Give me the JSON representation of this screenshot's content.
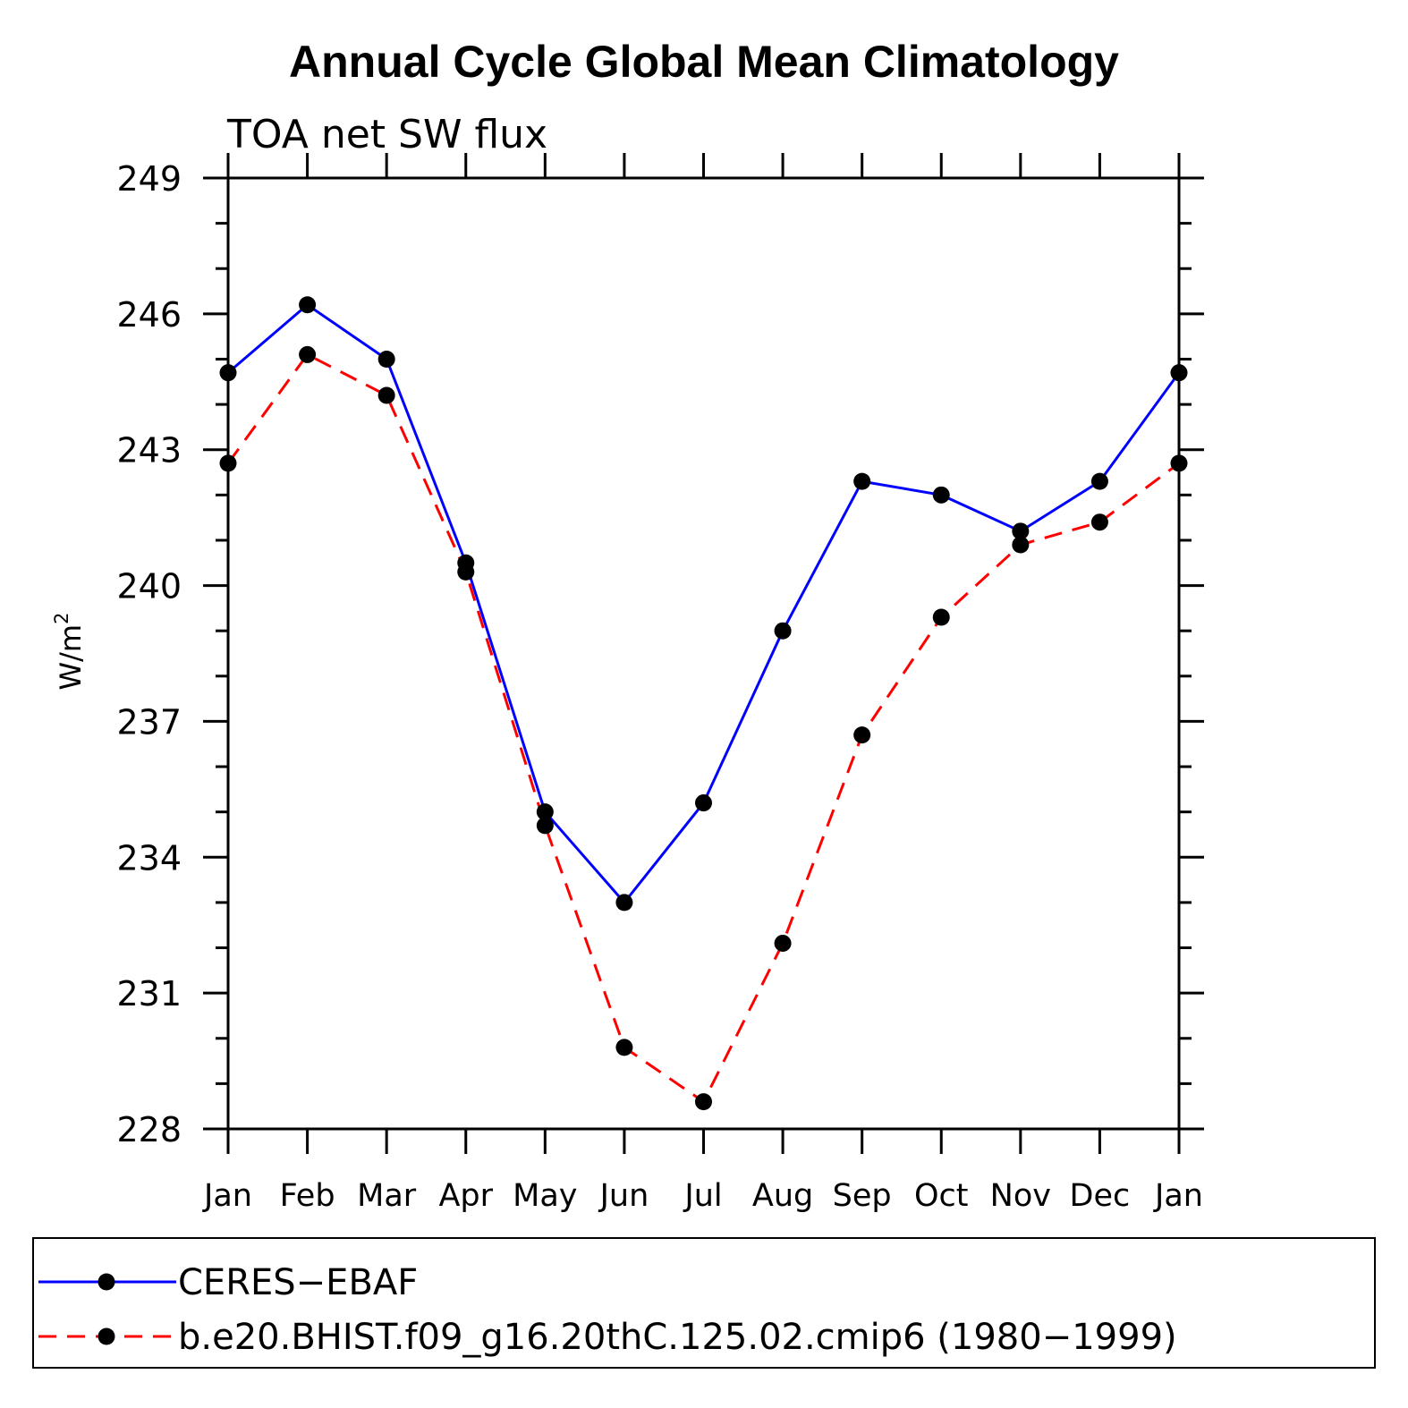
{
  "chart_data": {
    "type": "line",
    "title": "Annual Cycle Global Mean Climatology",
    "subtitle": "TOA net SW flux",
    "ylabel": "W/m",
    "ylabel_sup": "2",
    "xlabel": "",
    "categories": [
      "Jan",
      "Feb",
      "Mar",
      "Apr",
      "May",
      "Jun",
      "Jul",
      "Aug",
      "Sep",
      "Oct",
      "Nov",
      "Dec",
      "Jan"
    ],
    "ylim": [
      228,
      249
    ],
    "yticks": [
      228,
      231,
      234,
      237,
      240,
      243,
      246,
      249
    ],
    "grid": false,
    "legend_position": "bottom",
    "series": [
      {
        "name": "CERES−EBAF",
        "color": "#0000ff",
        "dash": "solid",
        "marker": "filled-circle",
        "values": [
          244.7,
          246.2,
          245.0,
          240.5,
          235.0,
          233.0,
          235.2,
          239.0,
          242.3,
          242.0,
          241.2,
          242.3,
          244.7
        ]
      },
      {
        "name": "b.e20.BHIST.f09_g16.20thC.125.02.cmip6 (1980−1999)",
        "color": "#ff0000",
        "dash": "dashed",
        "marker": "filled-circle",
        "values": [
          242.7,
          245.1,
          244.2,
          240.3,
          234.7,
          229.8,
          228.6,
          232.1,
          236.7,
          239.3,
          240.9,
          241.4,
          242.7
        ]
      }
    ]
  }
}
